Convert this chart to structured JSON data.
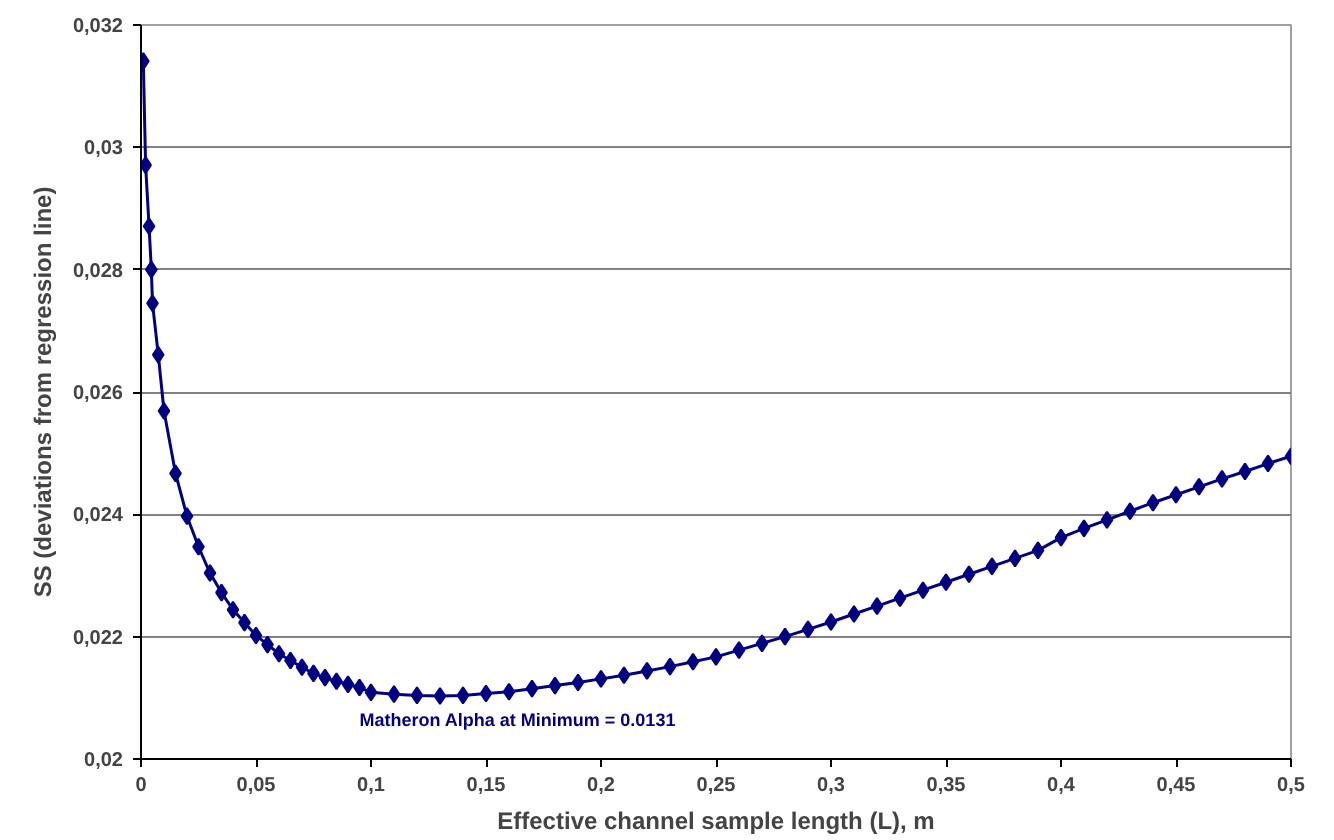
{
  "chart_data": {
    "type": "line",
    "xlabel": "Effective channel sample length (L), m",
    "ylabel": "SS (deviations from regression line)",
    "annotations": [
      "Matheron Alpha at Minimum = 0.0131"
    ],
    "x": [
      0.001,
      0.002,
      0.0035,
      0.0045,
      0.005,
      0.0075,
      0.01,
      0.015,
      0.02,
      0.025,
      0.03,
      0.035,
      0.04,
      0.045,
      0.05,
      0.055,
      0.06,
      0.065,
      0.07,
      0.075,
      0.08,
      0.085,
      0.09,
      0.095,
      0.1,
      0.11,
      0.12,
      0.13,
      0.14,
      0.15,
      0.16,
      0.17,
      0.18,
      0.19,
      0.2,
      0.21,
      0.22,
      0.23,
      0.24,
      0.25,
      0.26,
      0.27,
      0.28,
      0.29,
      0.3,
      0.31,
      0.32,
      0.33,
      0.34,
      0.35,
      0.36,
      0.37,
      0.38,
      0.39,
      0.4,
      0.41,
      0.42,
      0.43,
      0.44,
      0.45,
      0.46,
      0.47,
      0.48,
      0.49,
      0.5
    ],
    "series": [
      {
        "color": "#000080",
        "values": [
          0.03141,
          0.02971,
          0.02871,
          0.028,
          0.02745,
          0.02661,
          0.02569,
          0.02467,
          0.02397,
          0.02347,
          0.02304,
          0.02272,
          0.02244,
          0.02223,
          0.02202,
          0.02187,
          0.02172,
          0.02161,
          0.0215,
          0.0214,
          0.02133,
          0.02127,
          0.02122,
          0.02117,
          0.02109,
          0.02106,
          0.02104,
          0.02103,
          0.02104,
          0.02107,
          0.0211,
          0.02115,
          0.0212,
          0.02125,
          0.02131,
          0.02137,
          0.02144,
          0.02151,
          0.02159,
          0.02167,
          0.02178,
          0.02189,
          0.022,
          0.02212,
          0.02224,
          0.02237,
          0.0225,
          0.02263,
          0.02276,
          0.02289,
          0.02302,
          0.02315,
          0.02328,
          0.02341,
          0.02362,
          0.02377,
          0.02391,
          0.02405,
          0.02419,
          0.02432,
          0.02445,
          0.02458,
          0.0247,
          0.02483,
          0.02495
        ]
      }
    ],
    "xlim": [
      0,
      0.5
    ],
    "ylim": [
      0.02,
      0.032
    ],
    "xticks": [
      0,
      {
        "value": 0.05,
        "label": "0,05"
      },
      {
        "value": 0.1,
        "label": "0,1"
      },
      {
        "value": 0.15,
        "label": "0,15"
      },
      {
        "value": 0.2,
        "label": "0,2"
      },
      {
        "value": 0.25,
        "label": "0,25"
      },
      {
        "value": 0.3,
        "label": "0,3"
      },
      {
        "value": 0.35,
        "label": "0,35"
      },
      {
        "value": 0.4,
        "label": "0,4"
      },
      {
        "value": 0.45,
        "label": "0,45"
      },
      {
        "value": 0.5,
        "label": "0,5"
      }
    ],
    "yticks": [
      {
        "value": 0.02,
        "label": "0,02"
      },
      {
        "value": 0.022,
        "label": "0,022"
      },
      {
        "value": 0.024,
        "label": "0,024"
      },
      {
        "value": 0.026,
        "label": "0,026"
      },
      {
        "value": 0.028,
        "label": "0,028"
      },
      {
        "value": 0.03,
        "label": "0,03"
      },
      {
        "value": 0.032,
        "label": "0,032"
      }
    ],
    "grid": "y",
    "marker": "diamond",
    "line_style": "solid"
  }
}
